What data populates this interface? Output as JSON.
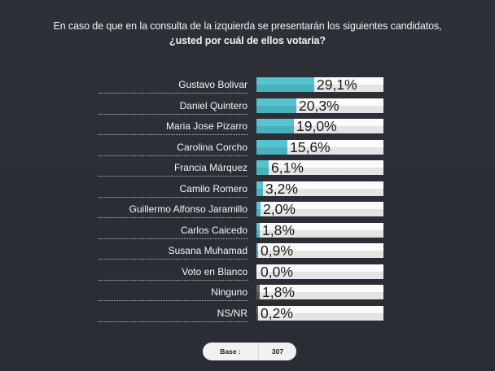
{
  "title": {
    "line1": "En caso de que en la consulta de la izquierda se presentarán los siguientes candidatos,",
    "line2": "¿usted por cuál de ellos votaría?"
  },
  "colors": {
    "background": "#2b2e35",
    "bar_fill": "#4ab8c4",
    "bar_fill_other": "#5e5e5e",
    "bar_track": "#f2f2f2",
    "label_text": "#f4f4f4"
  },
  "rows": [
    {
      "label": "Gustavo Bolivar",
      "value_text": "29,1%",
      "value": 29.1,
      "kind": "candidate"
    },
    {
      "label": "Daniel Quintero",
      "value_text": "20,3%",
      "value": 20.3,
      "kind": "candidate"
    },
    {
      "label": "Maria Jose Pizarro",
      "value_text": "19,0%",
      "value": 19.0,
      "kind": "candidate"
    },
    {
      "label": "Carolina Corcho",
      "value_text": "15,6%",
      "value": 15.6,
      "kind": "candidate"
    },
    {
      "label": "Francia Márquez",
      "value_text": "6,1%",
      "value": 6.1,
      "kind": "candidate"
    },
    {
      "label": "Camilo Romero",
      "value_text": "3,2%",
      "value": 3.2,
      "kind": "candidate"
    },
    {
      "label": "Guillermo Alfonso Jaramillo",
      "value_text": "2,0%",
      "value": 2.0,
      "kind": "candidate"
    },
    {
      "label": "Carlos Caicedo",
      "value_text": "1,8%",
      "value": 1.8,
      "kind": "candidate"
    },
    {
      "label": "Susana Muhamad",
      "value_text": "0,9%",
      "value": 0.9,
      "kind": "candidate"
    },
    {
      "label": "Voto en Blanco",
      "value_text": "0,0%",
      "value": 0.0,
      "kind": "candidate"
    },
    {
      "label": "Ninguno",
      "value_text": "1,8%",
      "value": 1.8,
      "kind": "other"
    },
    {
      "label": "NS/NR",
      "value_text": "0,2%",
      "value": 0.2,
      "kind": "other"
    }
  ],
  "base": {
    "label": "Base :",
    "value": "307"
  },
  "chart_data": {
    "type": "bar",
    "orientation": "horizontal",
    "title": "En caso de que en la consulta de la izquierda se presentarán los siguientes candidatos, ¿usted por cuál de ellos votaría?",
    "categories": [
      "Gustavo Bolivar",
      "Daniel Quintero",
      "Maria Jose Pizarro",
      "Carolina Corcho",
      "Francia Márquez",
      "Camilo Romero",
      "Guillermo Alfonso Jaramillo",
      "Carlos Caicedo",
      "Susana Muhamad",
      "Voto en Blanco",
      "Ninguno",
      "NS/NR"
    ],
    "values": [
      29.1,
      20.3,
      19.0,
      15.6,
      6.1,
      3.2,
      2.0,
      1.8,
      0.9,
      0.0,
      1.8,
      0.2
    ],
    "value_labels": [
      "29,1%",
      "20,3%",
      "19,0%",
      "15,6%",
      "6,1%",
      "3,2%",
      "2,0%",
      "1,8%",
      "0,9%",
      "0,0%",
      "1,8%",
      "0,2%"
    ],
    "xlabel": "",
    "ylabel": "",
    "xlim": [
      0,
      100
    ],
    "unit": "%",
    "grid": false,
    "legend": null,
    "annotations": [
      "Base : 307"
    ]
  }
}
